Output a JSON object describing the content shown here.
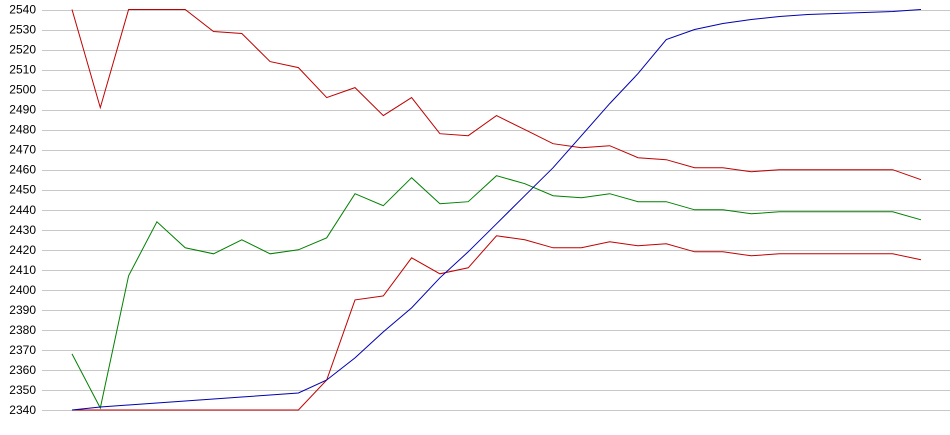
{
  "chart_data": {
    "type": "line",
    "title": "",
    "xlabel": "",
    "ylabel": "",
    "ylim": [
      2340,
      2540
    ],
    "yticks": [
      2340,
      2350,
      2360,
      2370,
      2380,
      2390,
      2400,
      2410,
      2420,
      2430,
      2440,
      2450,
      2460,
      2470,
      2480,
      2490,
      2500,
      2510,
      2520,
      2530,
      2540
    ],
    "grid": true,
    "legend": "none",
    "x": [
      0,
      1,
      2,
      3,
      4,
      5,
      6,
      7,
      8,
      9,
      10,
      11,
      12,
      13,
      14,
      15,
      16,
      17,
      18,
      19,
      20,
      21,
      22,
      23,
      24,
      25,
      26,
      27,
      28,
      29,
      30
    ],
    "series": [
      {
        "color": "#c00000",
        "values": [
          2540,
          2491,
          2540,
          2540,
          2540,
          2529,
          2528,
          2514,
          2511,
          2496,
          2501,
          2487,
          2496,
          2478,
          2477,
          2487,
          2480,
          2473,
          2471,
          2472,
          2466,
          2465,
          2461,
          2461,
          2459,
          2460,
          2460,
          2460,
          2460,
          2460,
          2455
        ]
      },
      {
        "color": "#008000",
        "values": [
          2368,
          2341,
          2407,
          2434,
          2421,
          2418,
          2425,
          2418,
          2420,
          2426,
          2448,
          2442,
          2456,
          2443,
          2444,
          2457,
          2453,
          2447,
          2446,
          2448,
          2444,
          2444,
          2440,
          2440,
          2438,
          2439,
          2439,
          2439,
          2439,
          2439,
          2435
        ]
      },
      {
        "color": "#c00000",
        "values": [
          2340,
          2340,
          2340,
          2340,
          2340,
          2340,
          2340,
          2340,
          2340,
          2355,
          2395,
          2397,
          2416,
          2408,
          2411,
          2427,
          2425,
          2421,
          2421,
          2424,
          2422,
          2423,
          2419,
          2419,
          2417,
          2418,
          2418,
          2418,
          2418,
          2418,
          2415
        ]
      },
      {
        "color": "#0000b0",
        "values": [
          2340,
          2341.5,
          2342.5,
          2343.5,
          2344.5,
          2345.5,
          2346.5,
          2347.5,
          2348.5,
          2355,
          2366,
          2379,
          2391,
          2406,
          2419,
          2433,
          2447,
          2461,
          2477,
          2493,
          2508,
          2525,
          2530,
          2533,
          2535,
          2536.5,
          2537.5,
          2538,
          2538.5,
          2539,
          2540
        ]
      }
    ]
  }
}
